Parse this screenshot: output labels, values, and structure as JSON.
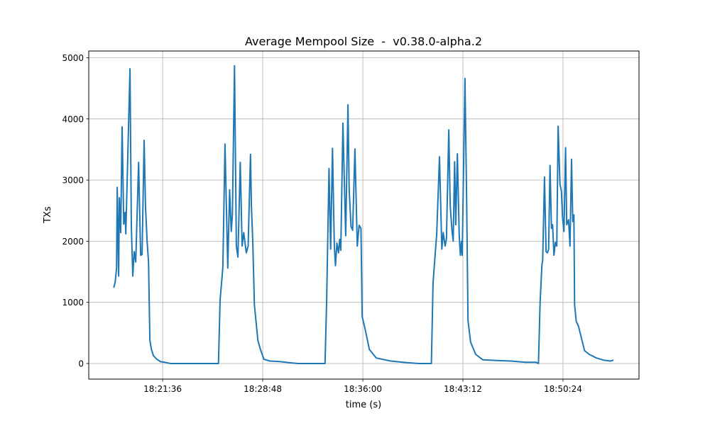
{
  "chart_data": {
    "type": "line",
    "title": "Average Mempool Size  -  v0.38.0-alpha.2",
    "xlabel": "time (s)",
    "ylabel": "TXs",
    "xlim": [
      "18:16:17",
      "18:55:52"
    ],
    "ylim": [
      -255,
      5110
    ],
    "grid": true,
    "x_ticks": [
      "18:21:36",
      "18:28:48",
      "18:36:00",
      "18:43:12",
      "18:50:24"
    ],
    "y_ticks": [
      0,
      1000,
      2000,
      3000,
      4000,
      5000
    ],
    "y_tick_labels": [
      "0",
      "1000",
      "2000",
      "3000",
      "4000",
      "5000"
    ],
    "color": "#1f77b4",
    "points": [
      [
        "18:18:05",
        1240
      ],
      [
        "18:18:11",
        1330
      ],
      [
        "18:18:17",
        1560
      ],
      [
        "18:18:20",
        2880
      ],
      [
        "18:18:26",
        1430
      ],
      [
        "18:18:29",
        2710
      ],
      [
        "18:18:35",
        2140
      ],
      [
        "18:18:41",
        3870
      ],
      [
        "18:18:48",
        2280
      ],
      [
        "18:18:54",
        2470
      ],
      [
        "18:18:57",
        2120
      ],
      [
        "18:19:15",
        4820
      ],
      [
        "18:19:21",
        2240
      ],
      [
        "18:19:27",
        1430
      ],
      [
        "18:19:33",
        1830
      ],
      [
        "18:19:40",
        1660
      ],
      [
        "18:19:52",
        3290
      ],
      [
        "18:20:01",
        1770
      ],
      [
        "18:20:07",
        1780
      ],
      [
        "18:20:16",
        3650
      ],
      [
        "18:20:22",
        2580
      ],
      [
        "18:20:29",
        2000
      ],
      [
        "18:20:35",
        1660
      ],
      [
        "18:20:41",
        380
      ],
      [
        "18:20:47",
        240
      ],
      [
        "18:20:56",
        130
      ],
      [
        "18:21:11",
        70
      ],
      [
        "18:21:27",
        30
      ],
      [
        "18:21:45",
        20
      ],
      [
        "18:22:10",
        0
      ],
      [
        "18:25:37",
        0
      ],
      [
        "18:25:44",
        1040
      ],
      [
        "18:25:49",
        1270
      ],
      [
        "18:25:56",
        1580
      ],
      [
        "18:26:05",
        3590
      ],
      [
        "18:26:17",
        1560
      ],
      [
        "18:26:25",
        2840
      ],
      [
        "18:26:32",
        2160
      ],
      [
        "18:26:37",
        2430
      ],
      [
        "18:26:46",
        4870
      ],
      [
        "18:26:54",
        1920
      ],
      [
        "18:27:01",
        1740
      ],
      [
        "18:27:11",
        3290
      ],
      [
        "18:27:19",
        1920
      ],
      [
        "18:27:26",
        2140
      ],
      [
        "18:27:37",
        1810
      ],
      [
        "18:27:45",
        1920
      ],
      [
        "18:27:55",
        3420
      ],
      [
        "18:27:59",
        2580
      ],
      [
        "18:28:05",
        2000
      ],
      [
        "18:28:12",
        960
      ],
      [
        "18:28:27",
        380
      ],
      [
        "18:28:38",
        230
      ],
      [
        "18:28:53",
        70
      ],
      [
        "18:29:19",
        40
      ],
      [
        "18:30:05",
        30
      ],
      [
        "18:30:51",
        10
      ],
      [
        "18:31:21",
        0
      ],
      [
        "18:33:17",
        0
      ],
      [
        "18:33:24",
        1040
      ],
      [
        "18:33:34",
        3190
      ],
      [
        "18:33:41",
        1870
      ],
      [
        "18:33:49",
        3520
      ],
      [
        "18:33:57",
        1920
      ],
      [
        "18:34:02",
        1600
      ],
      [
        "18:34:08",
        1970
      ],
      [
        "18:34:15",
        1810
      ],
      [
        "18:34:20",
        2030
      ],
      [
        "18:34:25",
        1850
      ],
      [
        "18:34:34",
        3930
      ],
      [
        "18:34:46",
        2090
      ],
      [
        "18:34:56",
        4230
      ],
      [
        "18:35:01",
        2840
      ],
      [
        "18:35:09",
        2240
      ],
      [
        "18:35:16",
        2180
      ],
      [
        "18:35:26",
        3510
      ],
      [
        "18:35:36",
        1920
      ],
      [
        "18:35:44",
        2260
      ],
      [
        "18:35:52",
        2210
      ],
      [
        "18:35:57",
        770
      ],
      [
        "18:36:12",
        530
      ],
      [
        "18:36:28",
        230
      ],
      [
        "18:36:58",
        90
      ],
      [
        "18:38:00",
        40
      ],
      [
        "18:39:10",
        15
      ],
      [
        "18:40:02",
        0
      ],
      [
        "18:40:56",
        0
      ],
      [
        "18:41:03",
        1310
      ],
      [
        "18:41:12",
        1770
      ],
      [
        "18:41:19",
        2120
      ],
      [
        "18:41:31",
        3380
      ],
      [
        "18:41:41",
        1870
      ],
      [
        "18:41:47",
        2140
      ],
      [
        "18:41:55",
        1920
      ],
      [
        "18:42:01",
        2040
      ],
      [
        "18:42:11",
        3820
      ],
      [
        "18:42:17",
        2580
      ],
      [
        "18:42:25",
        2160
      ],
      [
        "18:42:30",
        2000
      ],
      [
        "18:42:36",
        3300
      ],
      [
        "18:42:41",
        2270
      ],
      [
        "18:42:48",
        3430
      ],
      [
        "18:42:56",
        2090
      ],
      [
        "18:43:01",
        1770
      ],
      [
        "18:43:06",
        2000
      ],
      [
        "18:43:09",
        1770
      ],
      [
        "18:43:21",
        4660
      ],
      [
        "18:43:28",
        2700
      ],
      [
        "18:43:34",
        700
      ],
      [
        "18:43:45",
        350
      ],
      [
        "18:44:07",
        150
      ],
      [
        "18:44:38",
        60
      ],
      [
        "18:45:39",
        50
      ],
      [
        "18:46:40",
        40
      ],
      [
        "18:47:42",
        20
      ],
      [
        "18:48:28",
        20
      ],
      [
        "18:48:38",
        0
      ],
      [
        "18:48:45",
        1000
      ],
      [
        "18:48:53",
        1620
      ],
      [
        "18:48:56",
        1680
      ],
      [
        "18:49:04",
        3050
      ],
      [
        "18:49:11",
        1830
      ],
      [
        "18:49:17",
        1810
      ],
      [
        "18:49:22",
        1870
      ],
      [
        "18:49:28",
        3240
      ],
      [
        "18:49:34",
        2210
      ],
      [
        "18:49:39",
        2270
      ],
      [
        "18:49:45",
        1770
      ],
      [
        "18:49:51",
        1980
      ],
      [
        "18:49:57",
        1920
      ],
      [
        "18:50:03",
        3880
      ],
      [
        "18:50:11",
        2930
      ],
      [
        "18:50:17",
        2820
      ],
      [
        "18:50:22",
        2390
      ],
      [
        "18:50:28",
        2160
      ],
      [
        "18:50:35",
        3530
      ],
      [
        "18:50:40",
        2270
      ],
      [
        "18:50:48",
        2350
      ],
      [
        "18:50:54",
        1920
      ],
      [
        "18:51:01",
        3340
      ],
      [
        "18:51:06",
        2320
      ],
      [
        "18:51:11",
        2430
      ],
      [
        "18:51:14",
        960
      ],
      [
        "18:51:21",
        690
      ],
      [
        "18:51:31",
        610
      ],
      [
        "18:51:46",
        380
      ],
      [
        "18:51:57",
        210
      ],
      [
        "18:52:17",
        150
      ],
      [
        "18:52:48",
        90
      ],
      [
        "18:53:19",
        55
      ],
      [
        "18:53:49",
        40
      ],
      [
        "18:54:02",
        55
      ]
    ]
  }
}
